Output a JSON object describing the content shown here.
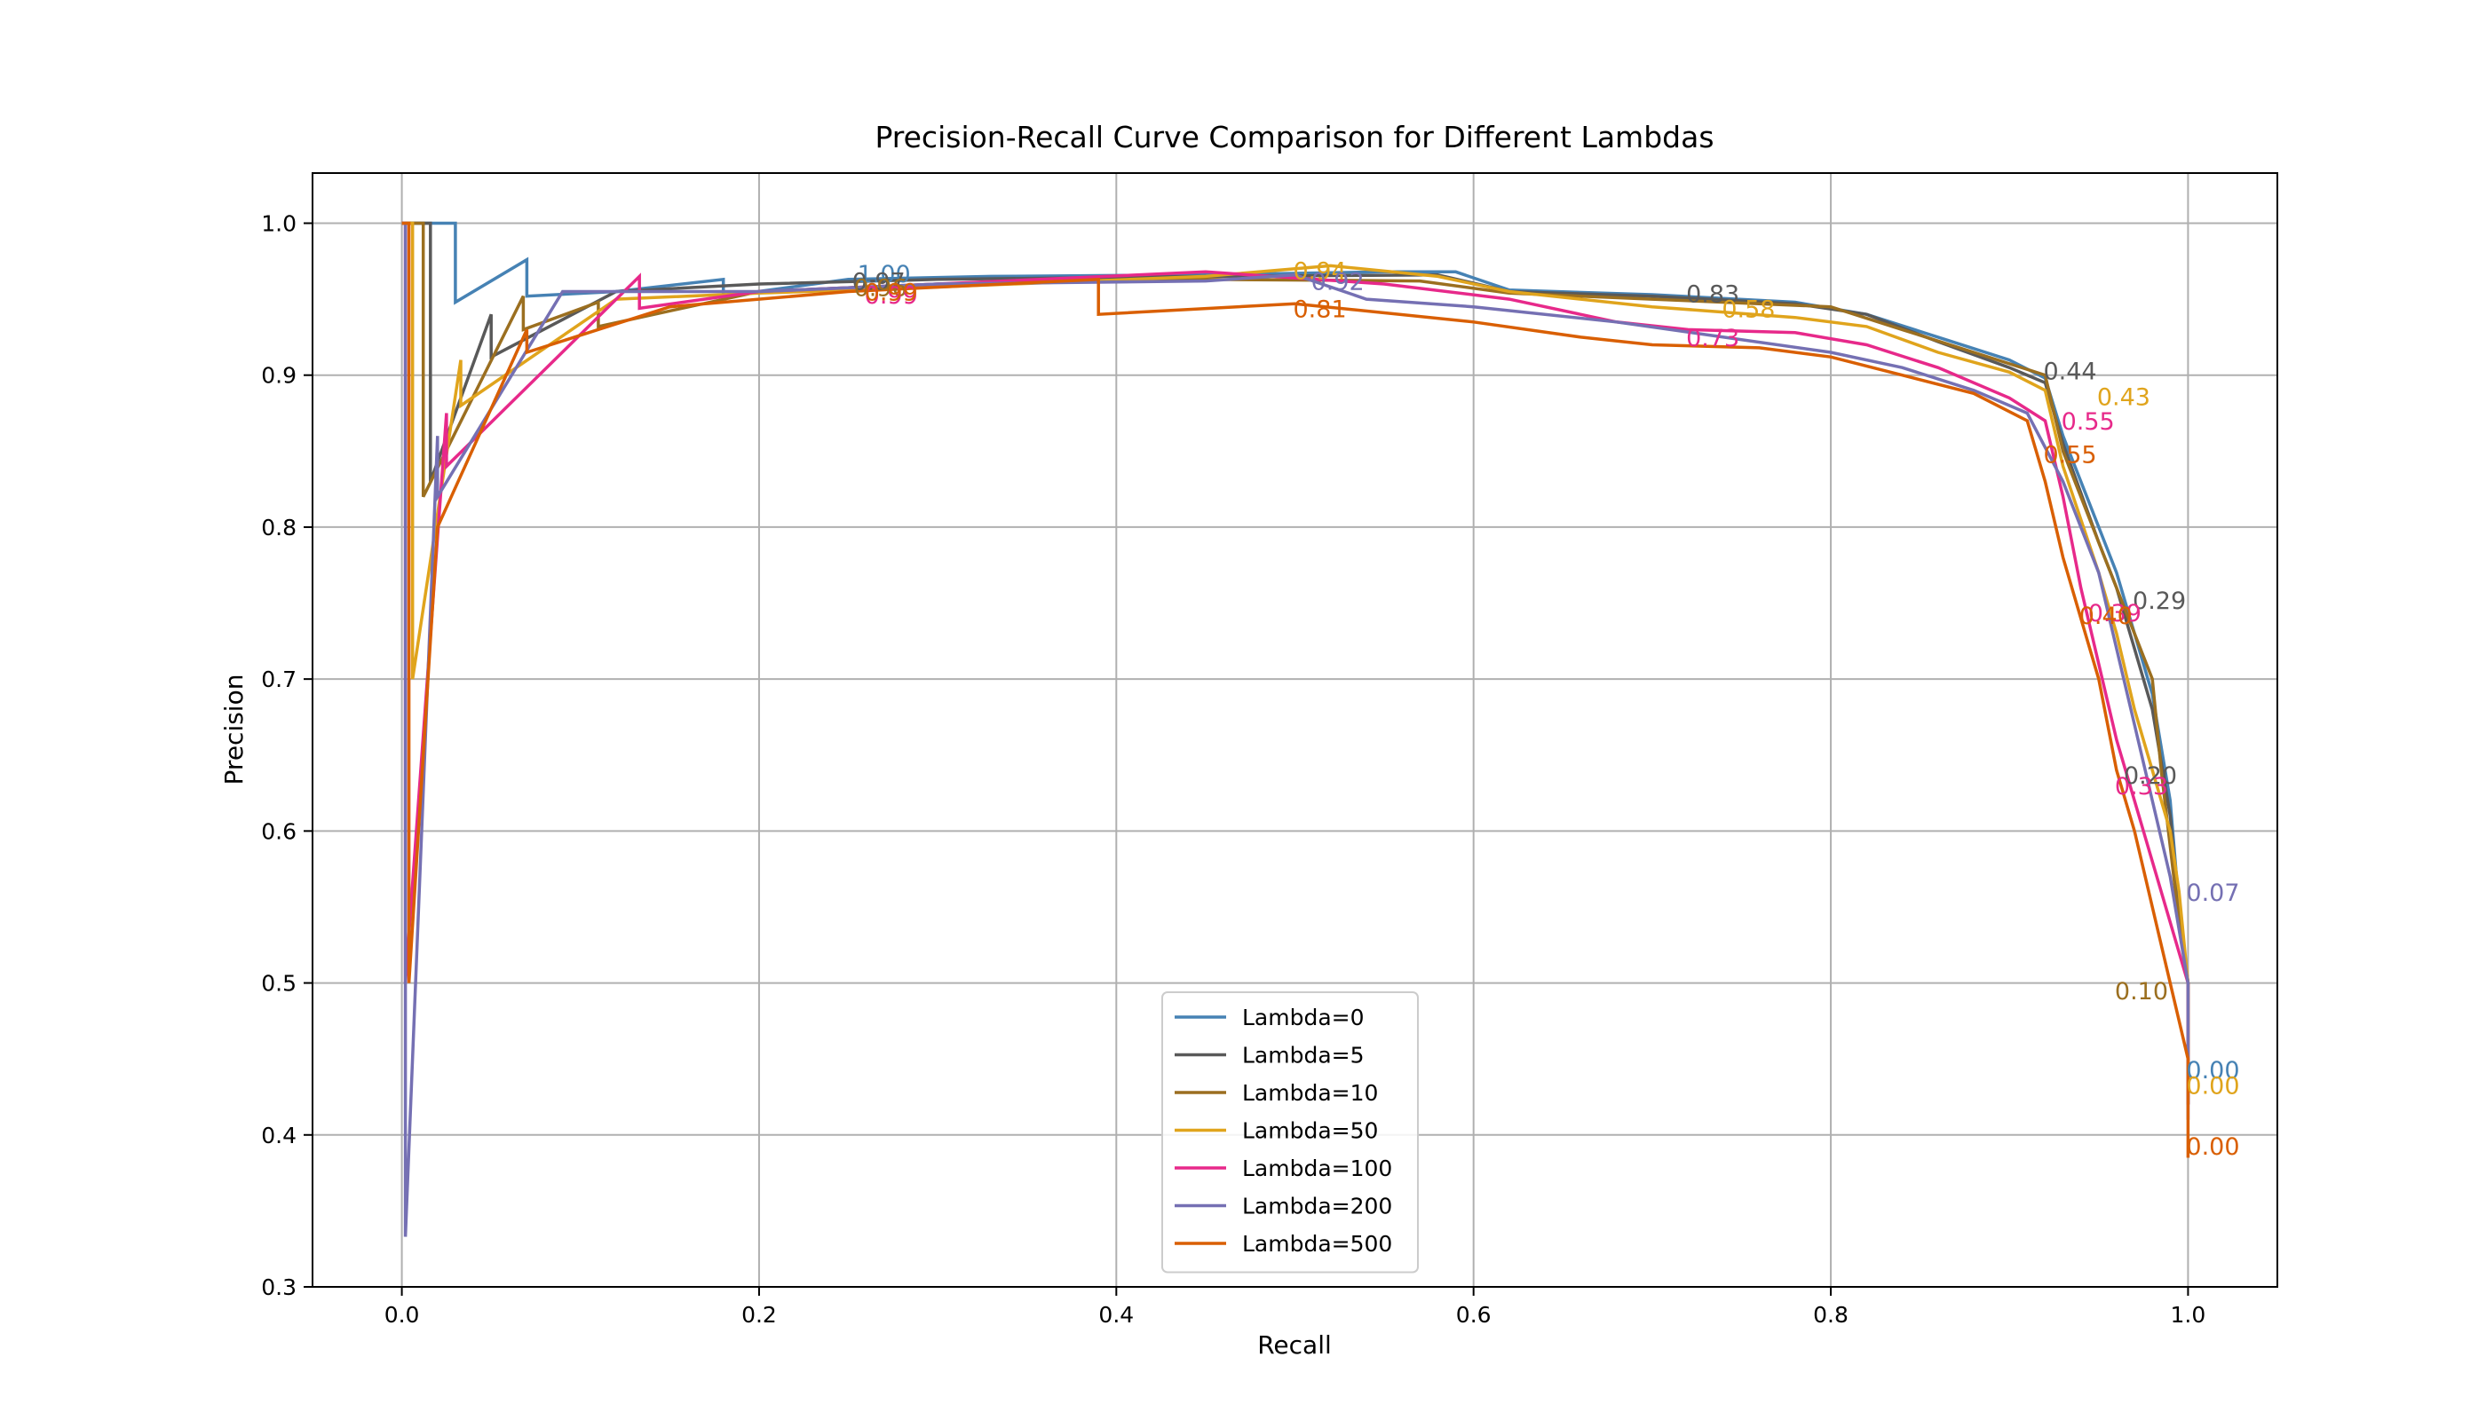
{
  "chart_data": {
    "type": "line",
    "title": "Precision-Recall Curve Comparison for Different Lambdas",
    "xlabel": "Recall",
    "ylabel": "Precision",
    "xlim": [
      -0.05,
      1.05
    ],
    "ylim": [
      0.3,
      1.033
    ],
    "xticks": [
      0.0,
      0.2,
      0.4,
      0.6,
      0.8,
      1.0
    ],
    "xtick_labels": [
      "0.0",
      "0.2",
      "0.4",
      "0.6",
      "0.8",
      "1.0"
    ],
    "yticks": [
      0.3,
      0.4,
      0.5,
      0.6,
      0.7,
      0.8,
      0.9,
      1.0
    ],
    "ytick_labels": [
      "0.3",
      "0.4",
      "0.5",
      "0.6",
      "0.7",
      "0.8",
      "0.9",
      "1.0"
    ],
    "grid": true,
    "legend_position": "lower-center",
    "series": [
      {
        "name": "Lambda=0",
        "color": "#4682b4",
        "points": [
          [
            0.0,
            1.0
          ],
          [
            0.03,
            1.0
          ],
          [
            0.03,
            0.948
          ],
          [
            0.07,
            0.976
          ],
          [
            0.07,
            0.952
          ],
          [
            0.12,
            0.955
          ],
          [
            0.18,
            0.963
          ],
          [
            0.18,
            0.952
          ],
          [
            0.25,
            0.963
          ],
          [
            0.33,
            0.965
          ],
          [
            0.45,
            0.966
          ],
          [
            0.55,
            0.968
          ],
          [
            0.59,
            0.968
          ],
          [
            0.62,
            0.956
          ],
          [
            0.7,
            0.953
          ],
          [
            0.78,
            0.948
          ],
          [
            0.82,
            0.94
          ],
          [
            0.86,
            0.925
          ],
          [
            0.9,
            0.91
          ],
          [
            0.92,
            0.898
          ],
          [
            0.93,
            0.86
          ],
          [
            0.95,
            0.8
          ],
          [
            0.96,
            0.77
          ],
          [
            0.97,
            0.73
          ],
          [
            0.98,
            0.69
          ],
          [
            0.99,
            0.62
          ],
          [
            0.995,
            0.55
          ],
          [
            1.0,
            0.5
          ],
          [
            1.0,
            0.42
          ]
        ],
        "labels": [
          {
            "x": 0.256,
            "y": 0.967,
            "text": "1.00"
          },
          {
            "x": 1.0,
            "y": 0.443,
            "text": "0.00"
          }
        ]
      },
      {
        "name": "Lambda=5",
        "color": "#595959",
        "points": [
          [
            0.0,
            1.0
          ],
          [
            0.016,
            1.0
          ],
          [
            0.016,
            0.83
          ],
          [
            0.05,
            0.94
          ],
          [
            0.05,
            0.912
          ],
          [
            0.12,
            0.955
          ],
          [
            0.2,
            0.96
          ],
          [
            0.3,
            0.963
          ],
          [
            0.45,
            0.965
          ],
          [
            0.58,
            0.966
          ],
          [
            0.62,
            0.955
          ],
          [
            0.7,
            0.952
          ],
          [
            0.78,
            0.947
          ],
          [
            0.82,
            0.94
          ],
          [
            0.86,
            0.922
          ],
          [
            0.9,
            0.905
          ],
          [
            0.92,
            0.895
          ],
          [
            0.93,
            0.855
          ],
          [
            0.95,
            0.79
          ],
          [
            0.96,
            0.76
          ],
          [
            0.97,
            0.72
          ],
          [
            0.98,
            0.68
          ],
          [
            0.99,
            0.61
          ],
          [
            0.995,
            0.55
          ],
          [
            1.0,
            0.5
          ],
          [
            1.0,
            0.42
          ]
        ],
        "labels": [
          {
            "x": 0.253,
            "y": 0.962,
            "text": "0.97"
          },
          {
            "x": 0.72,
            "y": 0.954,
            "text": "0.83"
          },
          {
            "x": 0.92,
            "y": 0.903,
            "text": "0.44"
          },
          {
            "x": 0.97,
            "y": 0.752,
            "text": "0.29"
          },
          {
            "x": 0.965,
            "y": 0.637,
            "text": "0.20"
          }
        ]
      },
      {
        "name": "Lambda=10",
        "color": "#9b6f20",
        "points": [
          [
            0.0,
            1.0
          ],
          [
            0.012,
            1.0
          ],
          [
            0.012,
            0.82
          ],
          [
            0.068,
            0.952
          ],
          [
            0.068,
            0.93
          ],
          [
            0.11,
            0.948
          ],
          [
            0.11,
            0.932
          ],
          [
            0.2,
            0.955
          ],
          [
            0.3,
            0.96
          ],
          [
            0.45,
            0.963
          ],
          [
            0.57,
            0.962
          ],
          [
            0.62,
            0.954
          ],
          [
            0.7,
            0.95
          ],
          [
            0.8,
            0.945
          ],
          [
            0.84,
            0.93
          ],
          [
            0.88,
            0.915
          ],
          [
            0.92,
            0.9
          ],
          [
            0.93,
            0.85
          ],
          [
            0.95,
            0.79
          ],
          [
            0.96,
            0.76
          ],
          [
            0.97,
            0.73
          ],
          [
            0.98,
            0.7
          ],
          [
            0.985,
            0.64
          ],
          [
            0.99,
            0.59
          ],
          [
            0.995,
            0.54
          ],
          [
            1.0,
            0.5
          ],
          [
            1.0,
            0.42
          ]
        ],
        "labels": [
          {
            "x": 0.254,
            "y": 0.958,
            "text": "0.96"
          },
          {
            "x": 0.96,
            "y": 0.495,
            "text": "0.10"
          }
        ]
      },
      {
        "name": "Lambda=50",
        "color": "#e0a41c",
        "points": [
          [
            0.0,
            1.0
          ],
          [
            0.006,
            1.0
          ],
          [
            0.006,
            0.7
          ],
          [
            0.033,
            0.91
          ],
          [
            0.033,
            0.88
          ],
          [
            0.12,
            0.95
          ],
          [
            0.2,
            0.954
          ],
          [
            0.3,
            0.958
          ],
          [
            0.45,
            0.965
          ],
          [
            0.52,
            0.972
          ],
          [
            0.58,
            0.965
          ],
          [
            0.62,
            0.955
          ],
          [
            0.7,
            0.945
          ],
          [
            0.78,
            0.938
          ],
          [
            0.82,
            0.932
          ],
          [
            0.86,
            0.915
          ],
          [
            0.9,
            0.902
          ],
          [
            0.92,
            0.89
          ],
          [
            0.93,
            0.84
          ],
          [
            0.95,
            0.77
          ],
          [
            0.96,
            0.73
          ],
          [
            0.97,
            0.68
          ],
          [
            0.98,
            0.64
          ],
          [
            0.99,
            0.6
          ],
          [
            0.995,
            0.56
          ],
          [
            1.0,
            0.5
          ],
          [
            1.0,
            0.43
          ]
        ],
        "labels": [
          {
            "x": 0.5,
            "y": 0.969,
            "text": "0.94"
          },
          {
            "x": 0.74,
            "y": 0.944,
            "text": "0.58"
          },
          {
            "x": 0.95,
            "y": 0.886,
            "text": "0.43"
          },
          {
            "x": 1.0,
            "y": 0.433,
            "text": "0.00"
          }
        ]
      },
      {
        "name": "Lambda=100",
        "color": "#e7298a",
        "points": [
          [
            0.0,
            1.0
          ],
          [
            0.002,
            1.0
          ],
          [
            0.002,
            0.5
          ],
          [
            0.025,
            0.875
          ],
          [
            0.025,
            0.84
          ],
          [
            0.133,
            0.965
          ],
          [
            0.133,
            0.944
          ],
          [
            0.2,
            0.955
          ],
          [
            0.3,
            0.96
          ],
          [
            0.45,
            0.968
          ],
          [
            0.55,
            0.96
          ],
          [
            0.62,
            0.95
          ],
          [
            0.68,
            0.935
          ],
          [
            0.72,
            0.93
          ],
          [
            0.78,
            0.928
          ],
          [
            0.82,
            0.92
          ],
          [
            0.86,
            0.905
          ],
          [
            0.9,
            0.885
          ],
          [
            0.92,
            0.87
          ],
          [
            0.93,
            0.82
          ],
          [
            0.94,
            0.76
          ],
          [
            0.95,
            0.71
          ],
          [
            0.96,
            0.66
          ],
          [
            0.97,
            0.62
          ],
          [
            0.98,
            0.58
          ],
          [
            0.99,
            0.54
          ],
          [
            1.0,
            0.5
          ],
          [
            1.0,
            0.42
          ]
        ],
        "labels": [
          {
            "x": 0.26,
            "y": 0.953,
            "text": "0.99"
          },
          {
            "x": 0.72,
            "y": 0.925,
            "text": "0.73"
          },
          {
            "x": 0.93,
            "y": 0.87,
            "text": "0.55"
          },
          {
            "x": 0.945,
            "y": 0.744,
            "text": "0.39"
          },
          {
            "x": 0.96,
            "y": 0.63,
            "text": "0.33"
          }
        ]
      },
      {
        "name": "Lambda=200",
        "color": "#7570b3",
        "points": [
          [
            0.0,
            1.0
          ],
          [
            0.002,
            1.0
          ],
          [
            0.002,
            0.333
          ],
          [
            0.02,
            0.86
          ],
          [
            0.02,
            0.82
          ],
          [
            0.09,
            0.955
          ],
          [
            0.2,
            0.955
          ],
          [
            0.3,
            0.96
          ],
          [
            0.45,
            0.962
          ],
          [
            0.5,
            0.966
          ],
          [
            0.54,
            0.95
          ],
          [
            0.6,
            0.945
          ],
          [
            0.68,
            0.935
          ],
          [
            0.74,
            0.925
          ],
          [
            0.8,
            0.915
          ],
          [
            0.84,
            0.905
          ],
          [
            0.88,
            0.89
          ],
          [
            0.91,
            0.875
          ],
          [
            0.93,
            0.83
          ],
          [
            0.95,
            0.77
          ],
          [
            0.96,
            0.72
          ],
          [
            0.97,
            0.67
          ],
          [
            0.98,
            0.62
          ],
          [
            0.99,
            0.57
          ],
          [
            1.0,
            0.5
          ],
          [
            1.0,
            0.41
          ]
        ],
        "labels": [
          {
            "x": 0.51,
            "y": 0.962,
            "text": "0.92"
          },
          {
            "x": 1.0,
            "y": 0.56,
            "text": "0.07"
          }
        ]
      },
      {
        "name": "Lambda=500",
        "color": "#d95f02",
        "points": [
          [
            0.0,
            1.0
          ],
          [
            0.004,
            1.0
          ],
          [
            0.004,
            0.5
          ],
          [
            0.02,
            0.8
          ],
          [
            0.07,
            0.93
          ],
          [
            0.07,
            0.915
          ],
          [
            0.15,
            0.945
          ],
          [
            0.25,
            0.955
          ],
          [
            0.39,
            0.963
          ],
          [
            0.39,
            0.94
          ],
          [
            0.5,
            0.947
          ],
          [
            0.6,
            0.935
          ],
          [
            0.66,
            0.925
          ],
          [
            0.7,
            0.92
          ],
          [
            0.76,
            0.918
          ],
          [
            0.8,
            0.912
          ],
          [
            0.84,
            0.9
          ],
          [
            0.88,
            0.888
          ],
          [
            0.91,
            0.87
          ],
          [
            0.92,
            0.83
          ],
          [
            0.93,
            0.78
          ],
          [
            0.94,
            0.74
          ],
          [
            0.95,
            0.7
          ],
          [
            0.96,
            0.64
          ],
          [
            0.97,
            0.6
          ],
          [
            0.98,
            0.55
          ],
          [
            0.99,
            0.5
          ],
          [
            1.0,
            0.45
          ],
          [
            1.0,
            0.385
          ]
        ],
        "labels": [
          {
            "x": 0.26,
            "y": 0.955,
            "text": "0.99"
          },
          {
            "x": 0.5,
            "y": 0.944,
            "text": "0.81"
          },
          {
            "x": 0.92,
            "y": 0.848,
            "text": "0.55"
          },
          {
            "x": 0.94,
            "y": 0.742,
            "text": "0.40"
          },
          {
            "x": 1.0,
            "y": 0.393,
            "text": "0.00"
          }
        ]
      }
    ]
  }
}
